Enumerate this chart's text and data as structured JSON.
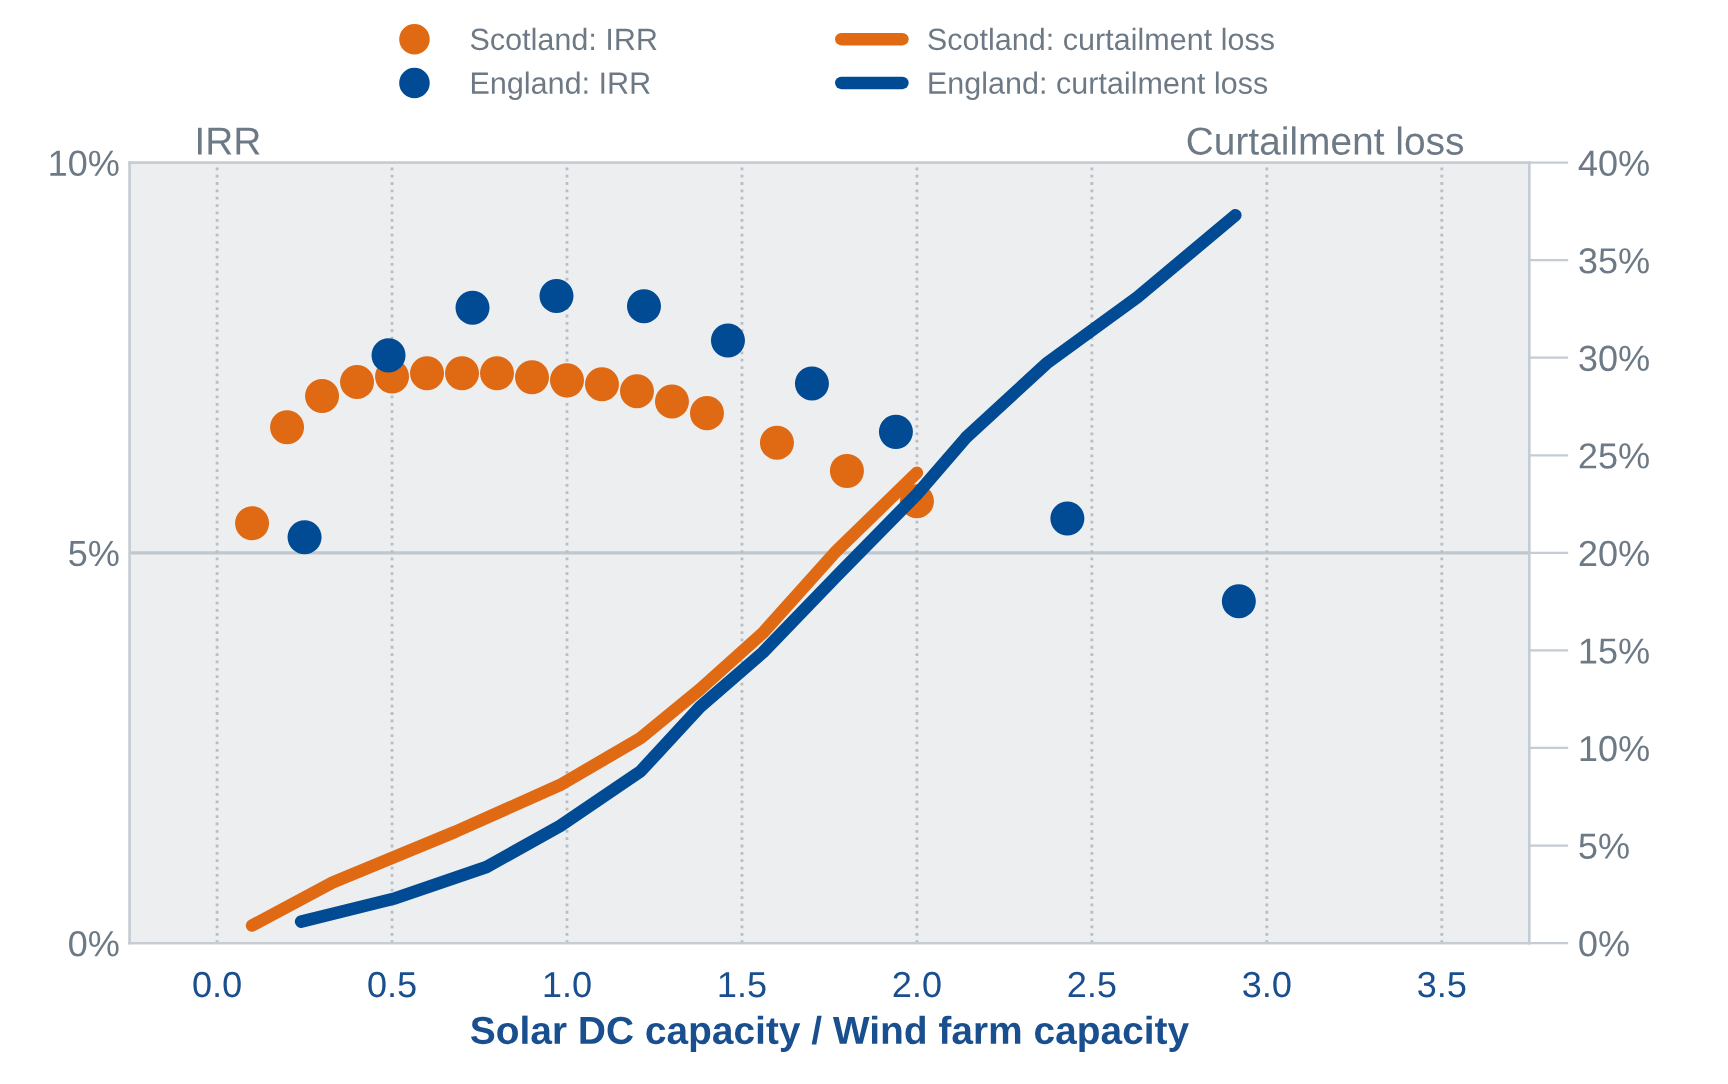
{
  "chart_data": {
    "type": "scatter",
    "xlabel": "Solar DC capacity / Wind farm capacity",
    "ylabel": "IRR",
    "y2label": "Curtailment loss",
    "xlim": [
      -0.25,
      3.75
    ],
    "xticks": [
      {
        "value": 0,
        "label": "0.0"
      },
      {
        "value": 0.5,
        "label": "0.5"
      },
      {
        "value": 1,
        "label": "1.0"
      },
      {
        "value": 1.5,
        "label": "1.5"
      },
      {
        "value": 2,
        "label": "2.0"
      },
      {
        "value": 2.5,
        "label": "2.5"
      },
      {
        "value": 3,
        "label": "3.0"
      },
      {
        "value": 3.5,
        "label": "3.5"
      }
    ],
    "ylim": [
      0,
      10
    ],
    "yticks": [
      {
        "value": 0,
        "label": "0%"
      },
      {
        "value": 5,
        "label": "5%"
      },
      {
        "value": 10,
        "label": "10%"
      }
    ],
    "y2lim": [
      0,
      40
    ],
    "y2ticks": [
      {
        "value": 0,
        "label": "0%"
      },
      {
        "value": 5,
        "label": "5%"
      },
      {
        "value": 10,
        "label": "10%"
      },
      {
        "value": 15,
        "label": "15%"
      },
      {
        "value": 20,
        "label": "20%"
      },
      {
        "value": 25,
        "label": "25%"
      },
      {
        "value": 30,
        "label": "30%"
      },
      {
        "value": 35,
        "label": "35%"
      },
      {
        "value": 40,
        "label": "40%"
      }
    ],
    "grid": "x",
    "legend": "top",
    "ref_lines": [
      {
        "axis": "y",
        "value": 5,
        "color": "#bfc7cf"
      }
    ],
    "series": [
      {
        "name": "Scotland: IRR",
        "marker": "circle",
        "color": "#e06a14",
        "x": [
          0.1,
          0.2,
          0.3,
          0.4,
          0.5,
          0.6,
          0.7,
          0.8,
          0.9,
          1.0,
          1.1,
          1.2,
          1.3,
          1.4,
          1.6,
          1.8,
          2.0
        ],
        "values": [
          5.38,
          6.61,
          7.01,
          7.19,
          7.26,
          7.3,
          7.3,
          7.3,
          7.25,
          7.21,
          7.16,
          7.07,
          6.94,
          6.79,
          6.41,
          6.05,
          5.66
        ]
      },
      {
        "name": "England: IRR",
        "marker": "circle",
        "color": "#004b93",
        "x": [
          0.25,
          0.49,
          0.73,
          0.97,
          1.22,
          1.46,
          1.7,
          1.94,
          2.43,
          2.92
        ],
        "values": [
          5.2,
          7.53,
          8.14,
          8.29,
          8.16,
          7.72,
          7.17,
          6.55,
          5.44,
          4.38
        ]
      },
      {
        "name": "Scotland: curtailment loss",
        "type": "line",
        "axis": "y2",
        "color": "#e06a14",
        "x": [
          0.1,
          0.33,
          0.68,
          0.98,
          1.21,
          1.38,
          1.56,
          1.77,
          2.0
        ],
        "values": [
          0.9,
          3.1,
          5.7,
          8.1,
          10.5,
          13.0,
          15.9,
          20.1,
          24.1
        ]
      },
      {
        "name": "England: curtailment loss",
        "type": "line",
        "axis": "y2",
        "color": "#004b93",
        "x": [
          0.24,
          0.51,
          0.77,
          0.98,
          1.21,
          1.38,
          1.56,
          1.77,
          2.0,
          2.14,
          2.37,
          2.63,
          2.91
        ],
        "values": [
          1.1,
          2.3,
          3.9,
          6.0,
          8.8,
          12.1,
          14.9,
          18.8,
          23.0,
          25.9,
          29.7,
          33.1,
          37.3
        ]
      }
    ]
  }
}
